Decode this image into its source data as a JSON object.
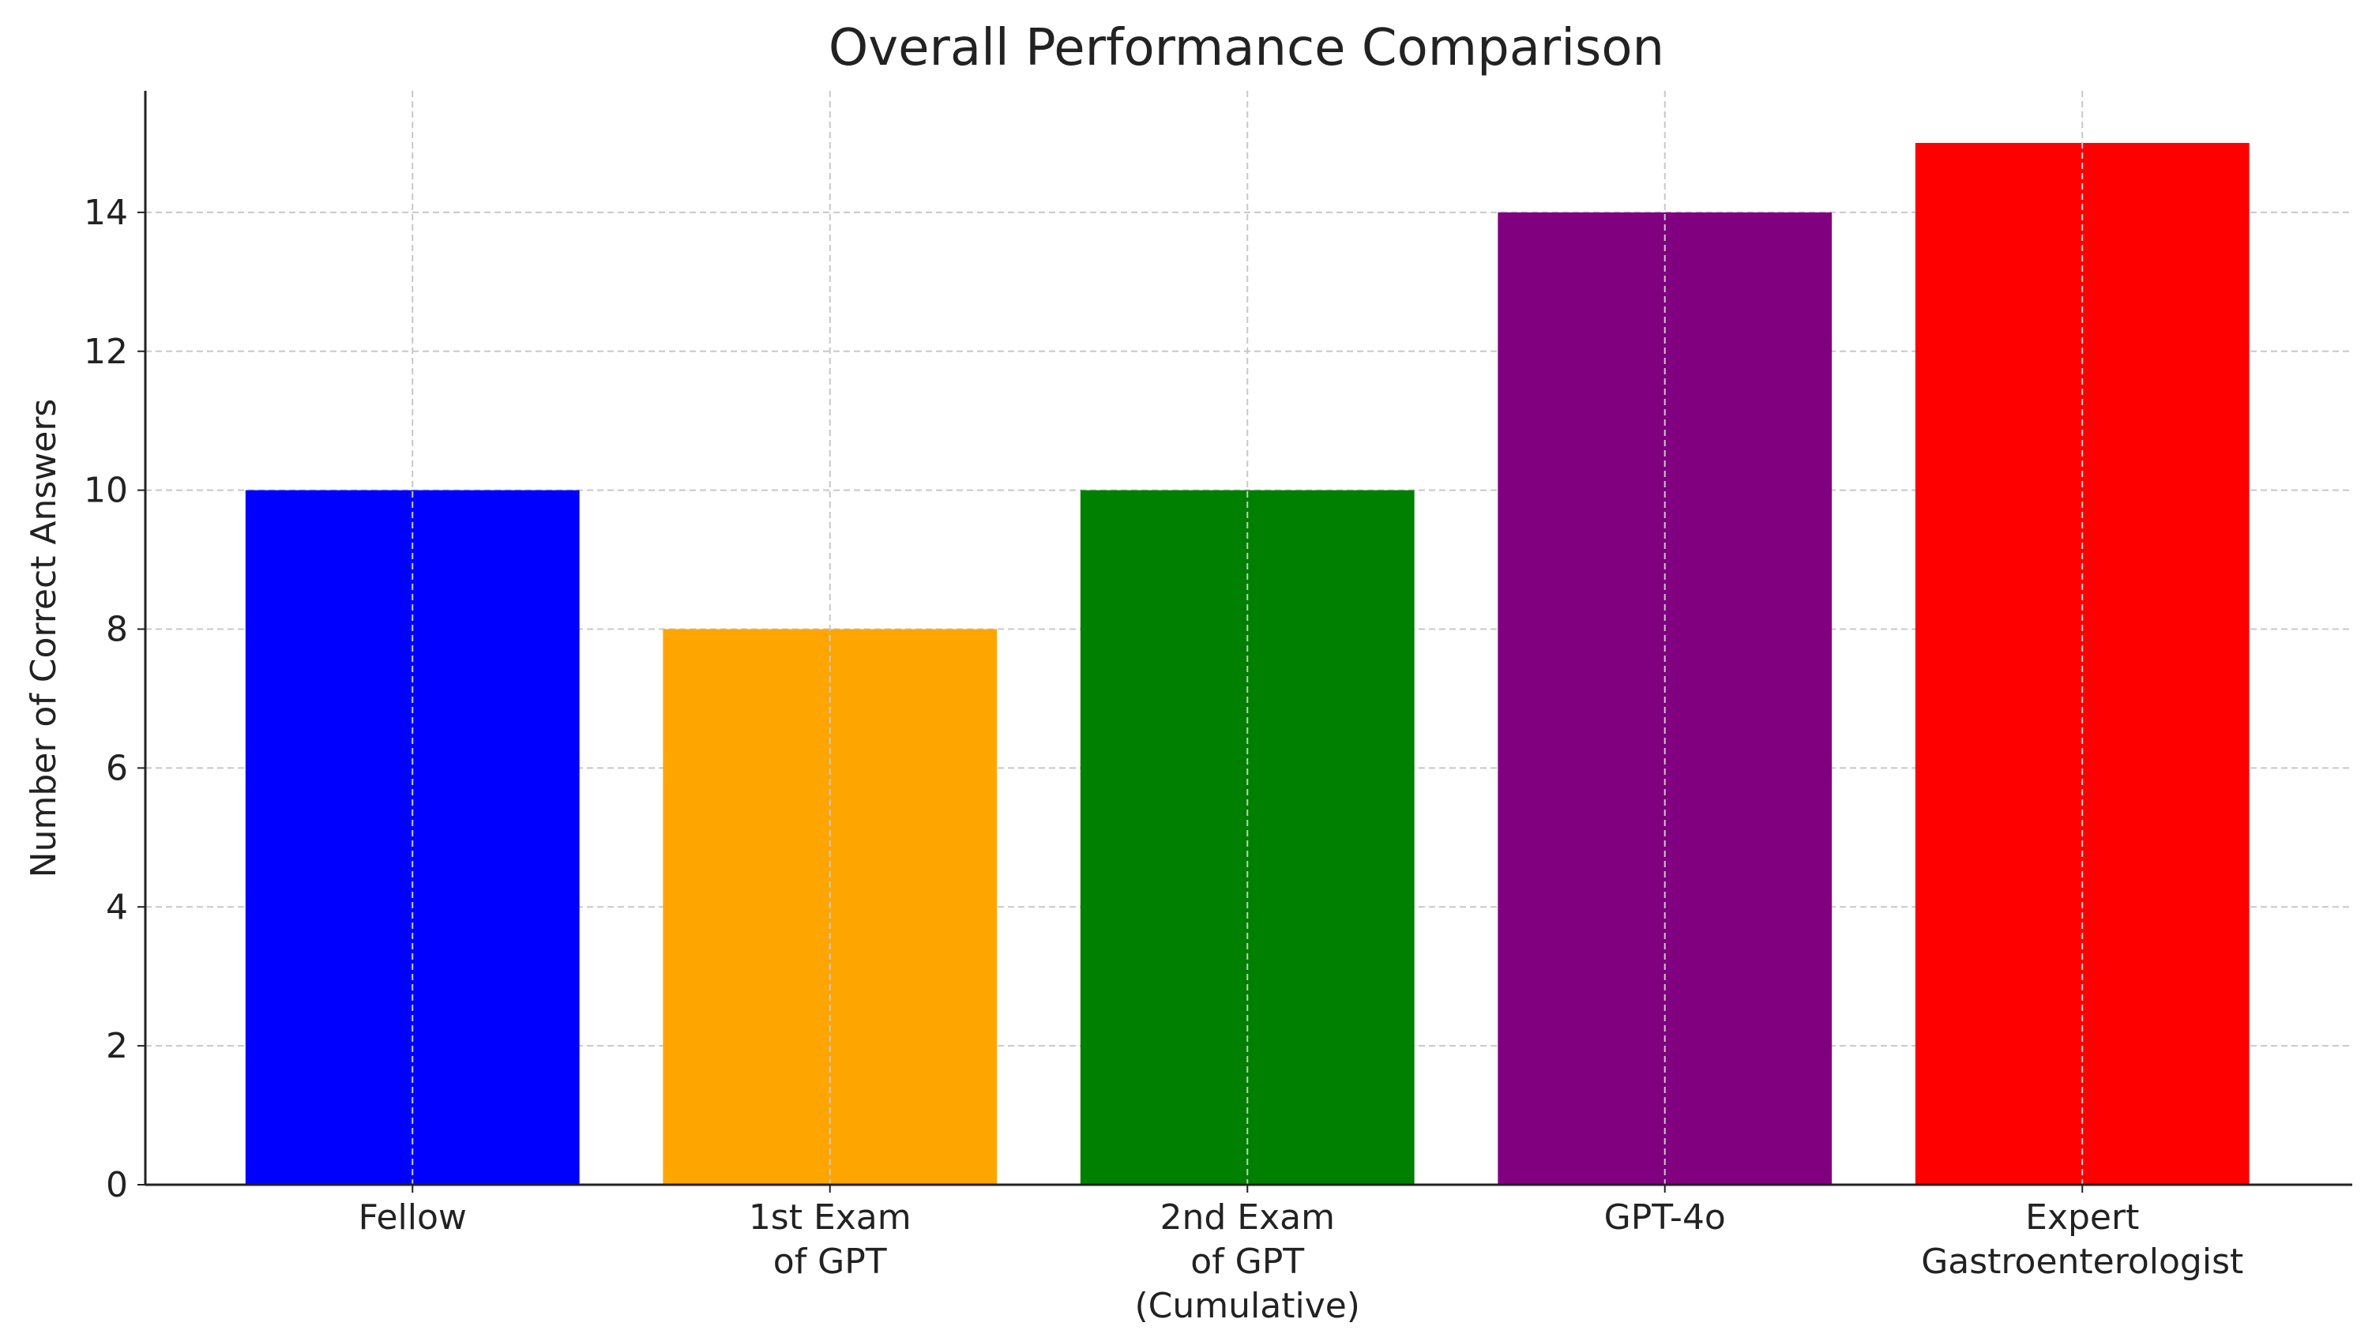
{
  "chart_data": {
    "type": "bar",
    "title": "Overall Performance Comparison",
    "y_label": "Number of Correct Answers",
    "categories": [
      "Fellow",
      "1st Exam\nof GPT",
      "2nd Exam\nof GPT\n(Cumulative)",
      "GPT-4o",
      "Expert\nGastroenterologist"
    ],
    "values": [
      10,
      8,
      10,
      14,
      15
    ],
    "colors": [
      "#0000ff",
      "#ffa500",
      "#008000",
      "#800080",
      "#ff0000"
    ],
    "ylim": [
      0,
      15.75
    ],
    "yticks": [
      0,
      2,
      4,
      6,
      8,
      10,
      12,
      14
    ],
    "grid": true
  }
}
